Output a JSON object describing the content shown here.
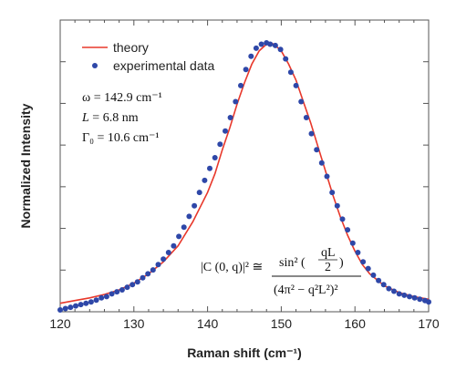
{
  "chart_data": {
    "type": "line",
    "title": "",
    "xlabel": "Raman shift (cm⁻¹)",
    "ylabel": "Normalized Intensity",
    "xlim": [
      120,
      170
    ],
    "ylim": [
      0,
      1.05
    ],
    "x_ticks": [
      120,
      130,
      140,
      150,
      160,
      170
    ],
    "x_tick_labels": [
      "120",
      "130",
      "140",
      "150",
      "160",
      "170"
    ],
    "y_tick_labels_shown": false,
    "legend_position": "top-left",
    "series": [
      {
        "name": "theory",
        "kind": "line",
        "color": "#e8382b",
        "x": [
          120,
          122,
          124,
          126,
          128,
          130,
          132,
          134,
          136,
          138,
          140,
          141,
          142,
          143,
          144,
          145,
          146,
          147,
          148,
          148.5,
          149,
          150,
          151,
          152,
          153,
          154,
          155,
          156,
          157,
          158,
          159,
          160,
          161,
          162,
          164,
          166,
          168,
          170
        ],
        "y": [
          0.025,
          0.035,
          0.045,
          0.058,
          0.075,
          0.1,
          0.135,
          0.18,
          0.24,
          0.33,
          0.44,
          0.51,
          0.6,
          0.68,
          0.77,
          0.85,
          0.92,
          0.97,
          0.995,
          1.0,
          0.995,
          0.97,
          0.92,
          0.86,
          0.78,
          0.7,
          0.61,
          0.52,
          0.43,
          0.35,
          0.28,
          0.22,
          0.17,
          0.135,
          0.09,
          0.065,
          0.05,
          0.04
        ]
      },
      {
        "name": "experimental data",
        "kind": "scatter",
        "color": "#2e47a8",
        "x": [
          120,
          120.7,
          121.4,
          122.1,
          122.8,
          123.5,
          124.2,
          124.9,
          125.6,
          126.3,
          127,
          127.7,
          128.4,
          129.1,
          129.8,
          130.5,
          131.2,
          131.9,
          132.6,
          133.3,
          134,
          134.7,
          135.4,
          136.1,
          136.8,
          137.5,
          138.2,
          138.9,
          139.6,
          140.3,
          141,
          141.7,
          142.4,
          143.1,
          143.8,
          144.5,
          145.2,
          145.9,
          146.6,
          147.3,
          148,
          148.5,
          149.2,
          149.9,
          150.6,
          151.3,
          152,
          152.7,
          153.4,
          154.1,
          154.8,
          155.5,
          156.2,
          156.9,
          157.6,
          158.3,
          159,
          159.7,
          160.4,
          161.1,
          161.8,
          162.5,
          163.2,
          163.9,
          164.6,
          165.3,
          166,
          166.7,
          167.4,
          168.1,
          168.8,
          169.5,
          170
        ],
        "y": [
          0.0,
          0.005,
          0.01,
          0.015,
          0.02,
          0.025,
          0.03,
          0.037,
          0.045,
          0.05,
          0.06,
          0.068,
          0.075,
          0.085,
          0.095,
          0.105,
          0.12,
          0.135,
          0.15,
          0.17,
          0.19,
          0.215,
          0.24,
          0.275,
          0.31,
          0.35,
          0.39,
          0.44,
          0.485,
          0.53,
          0.57,
          0.62,
          0.67,
          0.72,
          0.78,
          0.84,
          0.9,
          0.95,
          0.98,
          0.995,
          1.0,
          0.995,
          0.99,
          0.975,
          0.94,
          0.89,
          0.84,
          0.78,
          0.72,
          0.66,
          0.6,
          0.55,
          0.5,
          0.44,
          0.39,
          0.34,
          0.3,
          0.25,
          0.215,
          0.18,
          0.155,
          0.13,
          0.11,
          0.095,
          0.08,
          0.07,
          0.06,
          0.055,
          0.05,
          0.045,
          0.04,
          0.035,
          0.03
        ]
      }
    ],
    "annotations": {
      "omega": "ω = 142.9 cm⁻¹",
      "L_label": "L",
      "L_value": " = 6.8 nm",
      "gamma": "Γ₀ = 10.6 cm⁻¹",
      "equation_lhs": "|C (0, q)|² ≅",
      "equation_num_a": "sin² (",
      "equation_num_frac_top": "qL",
      "equation_num_frac_bot": "2",
      "equation_num_b": ")",
      "equation_den": "(4π² − q²L²)²"
    }
  }
}
